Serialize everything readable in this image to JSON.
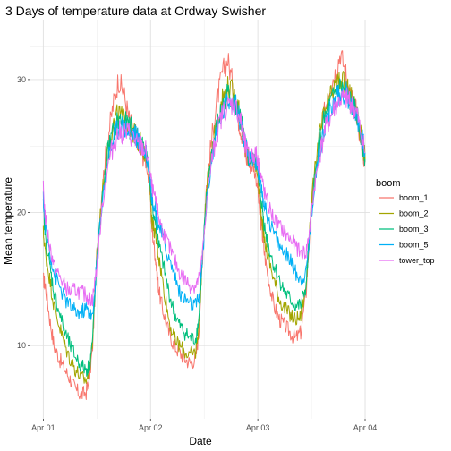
{
  "chart_data": {
    "type": "line",
    "title": "3 Days of temperature data at Ordway Swisher",
    "xlabel": "Date",
    "ylabel": "Mean temperature",
    "x_ticks": [
      "Apr 01",
      "Apr 02",
      "Apr 03",
      "Apr 04"
    ],
    "x_tick_values": [
      0,
      1,
      2,
      3
    ],
    "xlim": [
      -0.12,
      3.05
    ],
    "ylim": [
      4.5,
      34.5
    ],
    "y_ticks": [
      10,
      20,
      30
    ],
    "grid": true,
    "legend": {
      "title": "boom",
      "position": "right"
    },
    "series": [
      {
        "name": "boom_1",
        "color": "#F8766D",
        "x": [
          0.0,
          0.02,
          0.06,
          0.1,
          0.15,
          0.2,
          0.25,
          0.3,
          0.35,
          0.4,
          0.43,
          0.46,
          0.5,
          0.55,
          0.6,
          0.65,
          0.7,
          0.75,
          0.8,
          0.85,
          0.88,
          0.92,
          0.96,
          1.0,
          1.01,
          1.04,
          1.06,
          1.08,
          1.12,
          1.17,
          1.22,
          1.27,
          1.32,
          1.37,
          1.42,
          1.45,
          1.48,
          1.52,
          1.57,
          1.62,
          1.67,
          1.72,
          1.77,
          1.82,
          1.85,
          1.88,
          1.92,
          1.96,
          2.0,
          2.01,
          2.04,
          2.06,
          2.1,
          2.15,
          2.2,
          2.25,
          2.3,
          2.35,
          2.4,
          2.45,
          2.48,
          2.52,
          2.57,
          2.62,
          2.67,
          2.72,
          2.77,
          2.82,
          2.85,
          2.88,
          2.92,
          2.96,
          3.0
        ],
        "y": [
          15.0,
          14.5,
          12.0,
          10.0,
          9.0,
          8.2,
          7.5,
          6.7,
          6.3,
          6.5,
          7.5,
          10.0,
          17.0,
          22.0,
          25.5,
          28.0,
          30.0,
          29.0,
          27.0,
          26.0,
          25.5,
          24.5,
          24.0,
          21.0,
          19.0,
          17.0,
          15.5,
          14.0,
          12.5,
          11.0,
          10.0,
          9.5,
          9.0,
          8.7,
          9.0,
          11.0,
          16.0,
          22.0,
          25.5,
          28.5,
          30.5,
          31.5,
          29.5,
          27.0,
          26.0,
          24.5,
          23.5,
          23.5,
          22.0,
          20.5,
          18.5,
          17.0,
          15.0,
          13.0,
          12.0,
          11.5,
          11.0,
          10.5,
          11.0,
          14.0,
          18.0,
          22.0,
          25.0,
          27.5,
          29.5,
          30.5,
          32.0,
          30.5,
          29.0,
          28.5,
          27.5,
          25.5,
          23.8
        ]
      },
      {
        "name": "boom_2",
        "color": "#A3A500",
        "x": [
          0.0,
          0.02,
          0.06,
          0.1,
          0.15,
          0.2,
          0.25,
          0.3,
          0.35,
          0.4,
          0.43,
          0.46,
          0.5,
          0.55,
          0.6,
          0.65,
          0.7,
          0.75,
          0.8,
          0.85,
          0.88,
          0.92,
          0.96,
          1.0,
          1.01,
          1.04,
          1.06,
          1.08,
          1.12,
          1.17,
          1.22,
          1.27,
          1.32,
          1.37,
          1.42,
          1.45,
          1.48,
          1.52,
          1.57,
          1.62,
          1.67,
          1.72,
          1.77,
          1.82,
          1.85,
          1.88,
          1.92,
          1.96,
          2.0,
          2.01,
          2.04,
          2.06,
          2.1,
          2.15,
          2.2,
          2.25,
          2.3,
          2.35,
          2.4,
          2.45,
          2.48,
          2.52,
          2.57,
          2.62,
          2.67,
          2.72,
          2.77,
          2.82,
          2.85,
          2.88,
          2.92,
          2.96,
          3.0
        ],
        "y": [
          18.5,
          17.0,
          15.0,
          13.0,
          11.5,
          10.0,
          9.0,
          8.2,
          7.6,
          7.4,
          8.2,
          10.5,
          17.0,
          21.5,
          25.0,
          26.5,
          27.5,
          27.0,
          26.5,
          26.0,
          25.5,
          25.0,
          24.5,
          21.5,
          19.5,
          18.5,
          17.5,
          16.5,
          14.5,
          12.0,
          10.5,
          10.0,
          9.5,
          9.3,
          9.5,
          11.5,
          16.0,
          21.5,
          25.0,
          27.0,
          28.5,
          29.5,
          29.0,
          28.0,
          26.5,
          25.0,
          24.0,
          24.0,
          23.0,
          21.5,
          19.5,
          18.0,
          16.5,
          15.0,
          13.5,
          12.8,
          12.3,
          12.0,
          12.2,
          14.5,
          18.5,
          22.5,
          25.5,
          27.5,
          28.5,
          29.5,
          30.0,
          29.5,
          29.0,
          28.5,
          27.5,
          26.0,
          24.0
        ]
      },
      {
        "name": "boom_3",
        "color": "#00BF7D",
        "x": [
          0.0,
          0.02,
          0.06,
          0.1,
          0.15,
          0.2,
          0.25,
          0.3,
          0.35,
          0.4,
          0.43,
          0.46,
          0.5,
          0.55,
          0.6,
          0.65,
          0.7,
          0.75,
          0.8,
          0.85,
          0.88,
          0.92,
          0.96,
          1.0,
          1.01,
          1.04,
          1.06,
          1.08,
          1.12,
          1.17,
          1.22,
          1.27,
          1.32,
          1.37,
          1.42,
          1.45,
          1.48,
          1.52,
          1.57,
          1.62,
          1.67,
          1.72,
          1.77,
          1.82,
          1.85,
          1.88,
          1.92,
          1.96,
          2.0,
          2.01,
          2.04,
          2.06,
          2.1,
          2.15,
          2.2,
          2.25,
          2.3,
          2.35,
          2.4,
          2.45,
          2.48,
          2.52,
          2.57,
          2.62,
          2.67,
          2.72,
          2.77,
          2.82,
          2.85,
          2.88,
          2.92,
          2.96,
          3.0
        ],
        "y": [
          20.5,
          18.0,
          16.0,
          14.0,
          12.5,
          11.0,
          10.0,
          9.2,
          8.5,
          8.2,
          8.5,
          10.5,
          16.5,
          21.0,
          24.5,
          26.0,
          27.0,
          26.8,
          26.5,
          26.0,
          25.5,
          25.0,
          24.5,
          22.0,
          20.5,
          19.5,
          18.5,
          17.5,
          16.0,
          14.0,
          12.5,
          11.5,
          11.0,
          10.5,
          10.5,
          12.0,
          16.0,
          21.0,
          24.5,
          26.5,
          28.0,
          29.0,
          28.5,
          27.5,
          26.5,
          25.0,
          24.0,
          24.0,
          23.5,
          22.0,
          20.5,
          19.0,
          17.5,
          16.0,
          15.0,
          14.0,
          13.5,
          13.0,
          13.0,
          14.5,
          18.0,
          22.0,
          25.0,
          27.0,
          28.0,
          29.0,
          29.5,
          29.0,
          28.5,
          28.0,
          27.5,
          26.0,
          24.0
        ]
      },
      {
        "name": "boom_5",
        "color": "#00B0F6",
        "x": [
          0.0,
          0.02,
          0.06,
          0.1,
          0.15,
          0.2,
          0.25,
          0.3,
          0.35,
          0.4,
          0.43,
          0.46,
          0.5,
          0.55,
          0.6,
          0.65,
          0.7,
          0.75,
          0.8,
          0.85,
          0.88,
          0.92,
          0.96,
          1.0,
          1.01,
          1.04,
          1.06,
          1.08,
          1.12,
          1.17,
          1.22,
          1.27,
          1.32,
          1.37,
          1.42,
          1.45,
          1.48,
          1.52,
          1.57,
          1.62,
          1.67,
          1.72,
          1.77,
          1.82,
          1.85,
          1.88,
          1.92,
          1.96,
          2.0,
          2.01,
          2.04,
          2.06,
          2.1,
          2.15,
          2.2,
          2.25,
          2.3,
          2.35,
          2.4,
          2.45,
          2.48,
          2.52,
          2.57,
          2.62,
          2.67,
          2.72,
          2.77,
          2.82,
          2.85,
          2.88,
          2.92,
          2.96,
          3.0
        ],
        "y": [
          21.0,
          19.0,
          17.0,
          15.5,
          14.5,
          13.5,
          13.0,
          12.5,
          12.5,
          12.8,
          12.5,
          12.0,
          16.5,
          21.0,
          24.0,
          25.5,
          26.5,
          26.5,
          26.0,
          26.0,
          25.5,
          25.0,
          24.5,
          22.5,
          21.0,
          20.5,
          19.5,
          19.0,
          18.0,
          16.5,
          15.5,
          14.0,
          13.5,
          13.2,
          13.0,
          13.5,
          16.0,
          20.5,
          24.0,
          26.0,
          27.5,
          28.5,
          28.5,
          27.5,
          26.5,
          25.0,
          24.0,
          24.0,
          23.5,
          22.5,
          21.5,
          20.5,
          19.5,
          18.5,
          17.5,
          17.0,
          16.5,
          15.5,
          15.0,
          15.5,
          18.0,
          21.5,
          24.5,
          26.5,
          27.5,
          28.5,
          29.0,
          29.0,
          28.5,
          28.0,
          27.5,
          26.0,
          24.5
        ]
      },
      {
        "name": "tower_top",
        "color": "#E76BF3",
        "x": [
          0.0,
          0.02,
          0.06,
          0.1,
          0.15,
          0.2,
          0.25,
          0.3,
          0.35,
          0.4,
          0.43,
          0.46,
          0.5,
          0.55,
          0.6,
          0.65,
          0.7,
          0.75,
          0.8,
          0.85,
          0.88,
          0.92,
          0.96,
          1.0,
          1.01,
          1.04,
          1.06,
          1.08,
          1.12,
          1.17,
          1.22,
          1.27,
          1.32,
          1.37,
          1.42,
          1.45,
          1.48,
          1.52,
          1.57,
          1.62,
          1.67,
          1.72,
          1.77,
          1.82,
          1.85,
          1.88,
          1.92,
          1.96,
          2.0,
          2.01,
          2.04,
          2.06,
          2.1,
          2.15,
          2.2,
          2.25,
          2.3,
          2.35,
          2.4,
          2.45,
          2.48,
          2.52,
          2.57,
          2.62,
          2.67,
          2.72,
          2.77,
          2.82,
          2.85,
          2.88,
          2.92,
          2.96,
          3.0
        ],
        "y": [
          21.8,
          19.5,
          17.5,
          16.0,
          15.2,
          14.5,
          14.0,
          14.2,
          14.0,
          13.8,
          13.5,
          13.5,
          16.0,
          20.5,
          23.5,
          25.0,
          26.0,
          26.0,
          26.0,
          25.5,
          25.0,
          25.0,
          24.5,
          23.0,
          22.0,
          21.0,
          20.5,
          19.5,
          18.5,
          17.5,
          16.5,
          15.5,
          15.0,
          14.5,
          14.5,
          15.0,
          16.5,
          20.5,
          24.0,
          26.0,
          27.5,
          28.0,
          28.2,
          27.5,
          26.5,
          25.0,
          24.0,
          24.5,
          24.0,
          23.5,
          22.5,
          21.5,
          20.5,
          19.5,
          19.0,
          18.5,
          18.0,
          17.5,
          17.0,
          17.0,
          18.5,
          21.5,
          24.0,
          26.0,
          27.0,
          28.0,
          28.5,
          28.5,
          28.5,
          28.0,
          27.5,
          26.0,
          24.5
        ]
      }
    ]
  }
}
